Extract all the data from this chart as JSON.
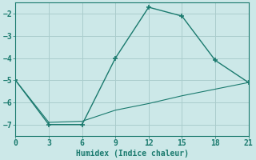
{
  "xlabel": "Humidex (Indice chaleur)",
  "ylabel": "",
  "background_color": "#cce8e8",
  "grid_color": "#aacccc",
  "line_color": "#1a7a6e",
  "xlim": [
    0,
    21
  ],
  "ylim": [
    -7.5,
    -1.5
  ],
  "xticks": [
    0,
    3,
    6,
    9,
    12,
    15,
    18,
    21
  ],
  "yticks": [
    -7,
    -6,
    -5,
    -4,
    -3,
    -2
  ],
  "line1_x": [
    0,
    3,
    6,
    9,
    12,
    15,
    18,
    21
  ],
  "line1_y": [
    -5.0,
    -7.0,
    -7.0,
    -4.0,
    -1.7,
    -2.1,
    -4.1,
    -5.1
  ],
  "line2_x": [
    0,
    3,
    6,
    9,
    12,
    15,
    18,
    21
  ],
  "line2_y": [
    -5.0,
    -6.9,
    -6.85,
    -6.35,
    -6.05,
    -5.7,
    -5.4,
    -5.1
  ]
}
